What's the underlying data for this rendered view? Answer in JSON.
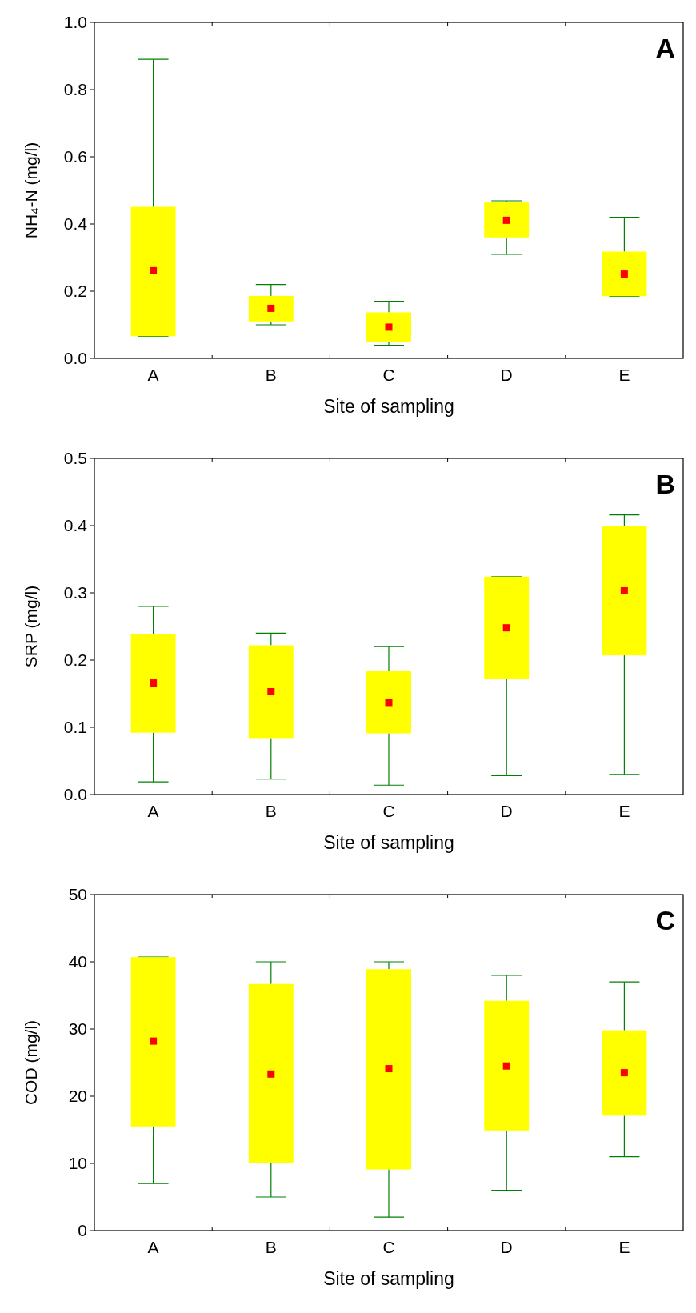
{
  "chart_data": [
    {
      "type": "box",
      "xlabel": "Site of sampling",
      "ylabel": "NH₄-N (mg/l)",
      "annotations": [
        "A"
      ],
      "categories": [
        "A",
        "B",
        "C",
        "D",
        "E"
      ],
      "ylim": [
        0,
        1
      ],
      "yticks": [
        {
          "value": 0,
          "label": "0.0"
        },
        {
          "value": 0.2,
          "label": "0.2"
        },
        {
          "value": 0.4,
          "label": "0.4"
        },
        {
          "value": 0.6,
          "label": "0.6"
        },
        {
          "value": 0.8,
          "label": "0.8"
        },
        {
          "value": 1,
          "label": "1.0"
        }
      ],
      "marker": "square",
      "series": [
        {
          "color": "#ffff00",
          "boxes": [
            {
              "low": 0.066,
              "q1": 0.066,
              "median": 0.261,
              "q3": 0.451,
              "high": 0.89
            },
            {
              "low": 0.1,
              "q1": 0.11,
              "median": 0.149,
              "q3": 0.186,
              "high": 0.22
            },
            {
              "low": 0.039,
              "q1": 0.049,
              "median": 0.093,
              "q3": 0.137,
              "high": 0.17
            },
            {
              "low": 0.31,
              "q1": 0.36,
              "median": 0.411,
              "q3": 0.464,
              "high": 0.469
            },
            {
              "low": 0.185,
              "q1": 0.185,
              "median": 0.251,
              "q3": 0.318,
              "high": 0.42
            }
          ]
        }
      ]
    },
    {
      "type": "box",
      "xlabel": "Site of sampling",
      "ylabel": "SRP (mg/l)",
      "annotations": [
        "B"
      ],
      "categories": [
        "A",
        "B",
        "C",
        "D",
        "E"
      ],
      "ylim": [
        0,
        0.5
      ],
      "yticks": [
        {
          "value": 0,
          "label": "0.0"
        },
        0.1,
        0.2,
        0.3,
        0.4,
        0.5
      ],
      "marker": "square",
      "series": [
        {
          "color": "#ffff00",
          "boxes": [
            {
              "low": 0.019,
              "q1": 0.092,
              "median": 0.166,
              "q3": 0.239,
              "high": 0.28
            },
            {
              "low": 0.023,
              "q1": 0.084,
              "median": 0.153,
              "q3": 0.222,
              "high": 0.24
            },
            {
              "low": 0.014,
              "q1": 0.091,
              "median": 0.137,
              "q3": 0.184,
              "high": 0.22
            },
            {
              "low": 0.028,
              "q1": 0.172,
              "median": 0.248,
              "q3": 0.324,
              "high": 0.324
            },
            {
              "low": 0.03,
              "q1": 0.207,
              "median": 0.303,
              "q3": 0.4,
              "high": 0.416
            }
          ]
        }
      ]
    },
    {
      "type": "box",
      "xlabel": "Site of sampling",
      "ylabel": "COD (mg/l)",
      "annotations": [
        "C"
      ],
      "categories": [
        "A",
        "B",
        "C",
        "D",
        "E"
      ],
      "ylim": [
        0,
        50
      ],
      "yticks": [
        0,
        10,
        20,
        30,
        40,
        50
      ],
      "marker": "square",
      "series": [
        {
          "color": "#ffff00",
          "boxes": [
            {
              "low": 7,
              "q1": 15.5,
              "median": 28.2,
              "q3": 40.7,
              "high": 40.7
            },
            {
              "low": 5,
              "q1": 10.1,
              "median": 23.3,
              "q3": 36.7,
              "high": 40
            },
            {
              "low": 2,
              "q1": 9.1,
              "median": 24.1,
              "q3": 38.9,
              "high": 40
            },
            {
              "low": 6,
              "q1": 14.9,
              "median": 24.5,
              "q3": 34.2,
              "high": 38
            },
            {
              "low": 11,
              "q1": 17.1,
              "median": 23.5,
              "q3": 29.8,
              "high": 37
            }
          ]
        }
      ]
    }
  ]
}
